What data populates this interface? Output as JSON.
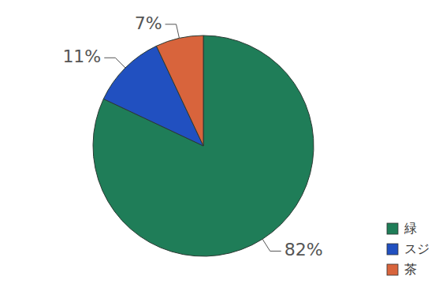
{
  "chart_data": {
    "type": "pie",
    "categories": [
      "緑",
      "スジ",
      "茶"
    ],
    "values": [
      82,
      11,
      7
    ],
    "value_labels": [
      "82%",
      "11%",
      "7%"
    ],
    "colors": [
      "#1f7d58",
      "#2150c0",
      "#d8643c"
    ],
    "data_labels": true,
    "legend": "bottom-right"
  }
}
